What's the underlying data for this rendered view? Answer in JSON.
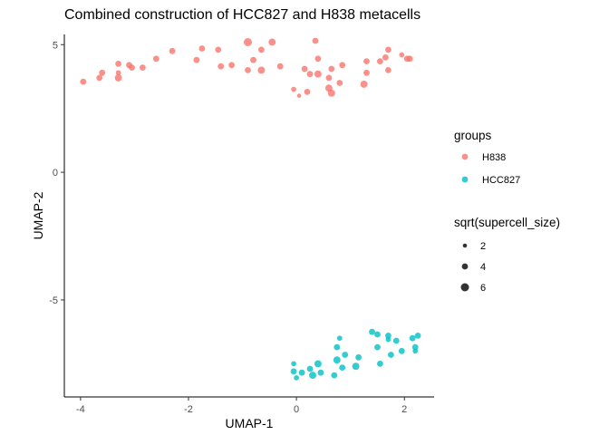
{
  "chart_data": {
    "type": "scatter",
    "title": "Combined construction of HCC827 and H838 metacells",
    "xlabel": "UMAP-1",
    "ylabel": "UMAP-2",
    "xlim": [
      -4.3,
      2.55
    ],
    "ylim": [
      -8.8,
      5.4
    ],
    "x_ticks": [
      -4,
      -2,
      0,
      2
    ],
    "x_tick_labels": [
      "-4",
      "-2",
      "0",
      "2"
    ],
    "y_ticks": [
      5,
      0,
      -5
    ],
    "y_tick_labels": [
      "5",
      "0",
      "-5"
    ],
    "grid": false,
    "legend_position": "right",
    "color_legend": {
      "title": "groups",
      "entries": [
        {
          "label": "H838",
          "color": "#F8766D"
        },
        {
          "label": "HCC827",
          "color": "#00BFC4"
        }
      ]
    },
    "size_legend": {
      "title": "sqrt(supercell_size)",
      "entries": [
        {
          "label": "2",
          "value": 2
        },
        {
          "label": "4",
          "value": 4
        },
        {
          "label": "6",
          "value": 6
        }
      ]
    },
    "series": [
      {
        "name": "H838",
        "color": "#F8766D",
        "points": [
          {
            "x": -3.95,
            "y": 3.55,
            "s": 4
          },
          {
            "x": -3.65,
            "y": 3.7,
            "s": 4
          },
          {
            "x": -3.6,
            "y": 3.9,
            "s": 4
          },
          {
            "x": -3.3,
            "y": 4.25,
            "s": 4
          },
          {
            "x": -3.3,
            "y": 3.9,
            "s": 3
          },
          {
            "x": -3.3,
            "y": 3.7,
            "s": 5
          },
          {
            "x": -3.1,
            "y": 4.2,
            "s": 4
          },
          {
            "x": -3.05,
            "y": 4.1,
            "s": 4
          },
          {
            "x": -2.85,
            "y": 4.1,
            "s": 4
          },
          {
            "x": -2.6,
            "y": 4.45,
            "s": 4
          },
          {
            "x": -2.3,
            "y": 4.75,
            "s": 4
          },
          {
            "x": -1.85,
            "y": 4.4,
            "s": 4
          },
          {
            "x": -1.75,
            "y": 4.85,
            "s": 4
          },
          {
            "x": -1.45,
            "y": 4.8,
            "s": 4
          },
          {
            "x": -1.4,
            "y": 4.15,
            "s": 4
          },
          {
            "x": -1.2,
            "y": 4.2,
            "s": 4
          },
          {
            "x": -0.9,
            "y": 5.1,
            "s": 6
          },
          {
            "x": -0.9,
            "y": 4.0,
            "s": 4
          },
          {
            "x": -0.8,
            "y": 4.4,
            "s": 4
          },
          {
            "x": -0.65,
            "y": 4.8,
            "s": 4
          },
          {
            "x": -0.65,
            "y": 4.0,
            "s": 5
          },
          {
            "x": -0.45,
            "y": 5.1,
            "s": 5
          },
          {
            "x": -0.3,
            "y": 4.15,
            "s": 4
          },
          {
            "x": -0.05,
            "y": 3.25,
            "s": 3
          },
          {
            "x": 0.05,
            "y": 3.0,
            "s": 2
          },
          {
            "x": 0.15,
            "y": 4.05,
            "s": 4
          },
          {
            "x": 0.2,
            "y": 3.15,
            "s": 4
          },
          {
            "x": 0.25,
            "y": 3.85,
            "s": 4
          },
          {
            "x": 0.35,
            "y": 5.15,
            "s": 4
          },
          {
            "x": 0.4,
            "y": 3.85,
            "s": 5
          },
          {
            "x": 0.4,
            "y": 4.45,
            "s": 4
          },
          {
            "x": 0.6,
            "y": 3.7,
            "s": 4
          },
          {
            "x": 0.6,
            "y": 3.3,
            "s": 5
          },
          {
            "x": 0.65,
            "y": 3.1,
            "s": 5
          },
          {
            "x": 0.65,
            "y": 4.05,
            "s": 4
          },
          {
            "x": 0.8,
            "y": 3.5,
            "s": 4
          },
          {
            "x": 0.85,
            "y": 4.2,
            "s": 4
          },
          {
            "x": 1.25,
            "y": 3.45,
            "s": 5
          },
          {
            "x": 1.3,
            "y": 3.9,
            "s": 4
          },
          {
            "x": 1.3,
            "y": 4.35,
            "s": 4
          },
          {
            "x": 1.55,
            "y": 4.35,
            "s": 4
          },
          {
            "x": 1.65,
            "y": 4.5,
            "s": 4
          },
          {
            "x": 1.7,
            "y": 4.8,
            "s": 4
          },
          {
            "x": 1.7,
            "y": 4.0,
            "s": 4
          },
          {
            "x": 1.95,
            "y": 4.6,
            "s": 3
          },
          {
            "x": 2.05,
            "y": 4.45,
            "s": 4
          },
          {
            "x": 2.1,
            "y": 4.45,
            "s": 4
          }
        ]
      },
      {
        "name": "HCC827",
        "color": "#00BFC4",
        "points": [
          {
            "x": -0.05,
            "y": -7.5,
            "s": 3
          },
          {
            "x": -0.05,
            "y": -7.8,
            "s": 4
          },
          {
            "x": 0.0,
            "y": -8.05,
            "s": 3
          },
          {
            "x": 0.1,
            "y": -7.85,
            "s": 4
          },
          {
            "x": 0.25,
            "y": -7.7,
            "s": 4
          },
          {
            "x": 0.3,
            "y": -7.95,
            "s": 5
          },
          {
            "x": 0.4,
            "y": -7.5,
            "s": 5
          },
          {
            "x": 0.45,
            "y": -7.85,
            "s": 4
          },
          {
            "x": 0.7,
            "y": -7.95,
            "s": 4
          },
          {
            "x": 0.75,
            "y": -7.35,
            "s": 5
          },
          {
            "x": 0.75,
            "y": -6.85,
            "s": 4
          },
          {
            "x": 0.8,
            "y": -6.5,
            "s": 3
          },
          {
            "x": 0.85,
            "y": -7.65,
            "s": 4
          },
          {
            "x": 0.9,
            "y": -7.15,
            "s": 4
          },
          {
            "x": 1.1,
            "y": -7.6,
            "s": 5
          },
          {
            "x": 1.15,
            "y": -7.25,
            "s": 4
          },
          {
            "x": 1.4,
            "y": -6.25,
            "s": 4
          },
          {
            "x": 1.5,
            "y": -6.35,
            "s": 4
          },
          {
            "x": 1.5,
            "y": -6.85,
            "s": 4
          },
          {
            "x": 1.55,
            "y": -7.5,
            "s": 4
          },
          {
            "x": 1.7,
            "y": -6.4,
            "s": 4
          },
          {
            "x": 1.7,
            "y": -6.55,
            "s": 3
          },
          {
            "x": 1.75,
            "y": -7.15,
            "s": 4
          },
          {
            "x": 1.85,
            "y": -6.6,
            "s": 4
          },
          {
            "x": 1.95,
            "y": -7.0,
            "s": 4
          },
          {
            "x": 2.15,
            "y": -6.5,
            "s": 4
          },
          {
            "x": 2.2,
            "y": -6.85,
            "s": 4
          },
          {
            "x": 2.2,
            "y": -7.0,
            "s": 3
          },
          {
            "x": 2.25,
            "y": -6.4,
            "s": 4
          }
        ]
      }
    ]
  }
}
